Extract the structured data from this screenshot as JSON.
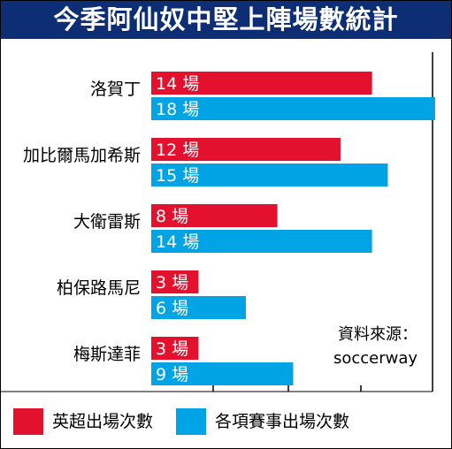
{
  "title": "今季阿仙奴中堅上陣場數統計",
  "source": {
    "label": "資料來源：",
    "value": "soccerway"
  },
  "colors": {
    "title_bg": "#0d2d74",
    "league": "#e3102e",
    "all": "#00a4e4",
    "gridline": "#000000"
  },
  "chart_data": {
    "type": "bar",
    "orientation": "horizontal",
    "categories": [
      "洛賀丁",
      "加比爾馬加希斯",
      "大衛雷斯",
      "柏保路馬尼",
      "梅斯達菲"
    ],
    "series": [
      {
        "name": "英超出場次數",
        "color": "#e3102e",
        "values": [
          14,
          12,
          8,
          3,
          3
        ]
      },
      {
        "name": "各項賽事出場次數",
        "color": "#00a4e4",
        "values": [
          18,
          15,
          14,
          6,
          9
        ]
      }
    ],
    "value_suffix": "場",
    "xlim": [
      0,
      18
    ],
    "grid": true,
    "legend_position": "bottom",
    "title": "今季阿仙奴中堅上陣場數統計",
    "xlabel": "",
    "ylabel": ""
  }
}
